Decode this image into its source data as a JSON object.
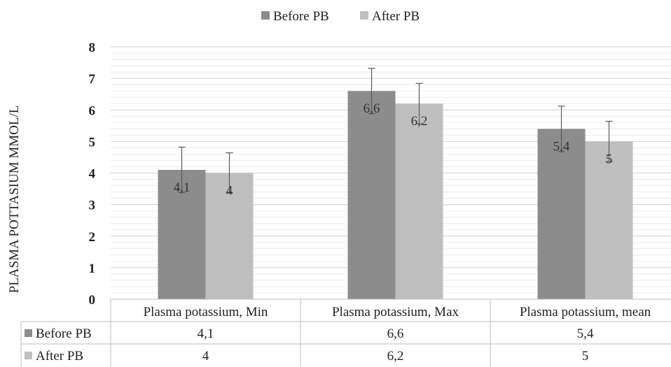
{
  "chart_data": {
    "type": "bar",
    "categories": [
      "Plasma potassium, Min",
      "Plasma potassium, Max",
      "Plasma potassium, mean"
    ],
    "series": [
      {
        "name": "Before PB",
        "values": [
          4.1,
          6.6,
          5.4
        ],
        "labels": [
          "4,1",
          "6,6",
          "5,4"
        ],
        "error": [
          0.72,
          0.72,
          0.72
        ],
        "color": "#8c8c8c"
      },
      {
        "name": "After PB",
        "values": [
          4,
          6.2,
          5
        ],
        "labels": [
          "4",
          "6,2",
          "5"
        ],
        "error": [
          0.64,
          0.64,
          0.64
        ],
        "color": "#bfbfbf"
      }
    ],
    "ylabel": "PLASMA POTTASIUM MMOL/L",
    "ylim": [
      0,
      8
    ],
    "yticks": [
      "0",
      "1",
      "2",
      "3",
      "4",
      "5",
      "6",
      "7",
      "8"
    ],
    "grid": true,
    "legend_position": "top",
    "data_table": true
  }
}
